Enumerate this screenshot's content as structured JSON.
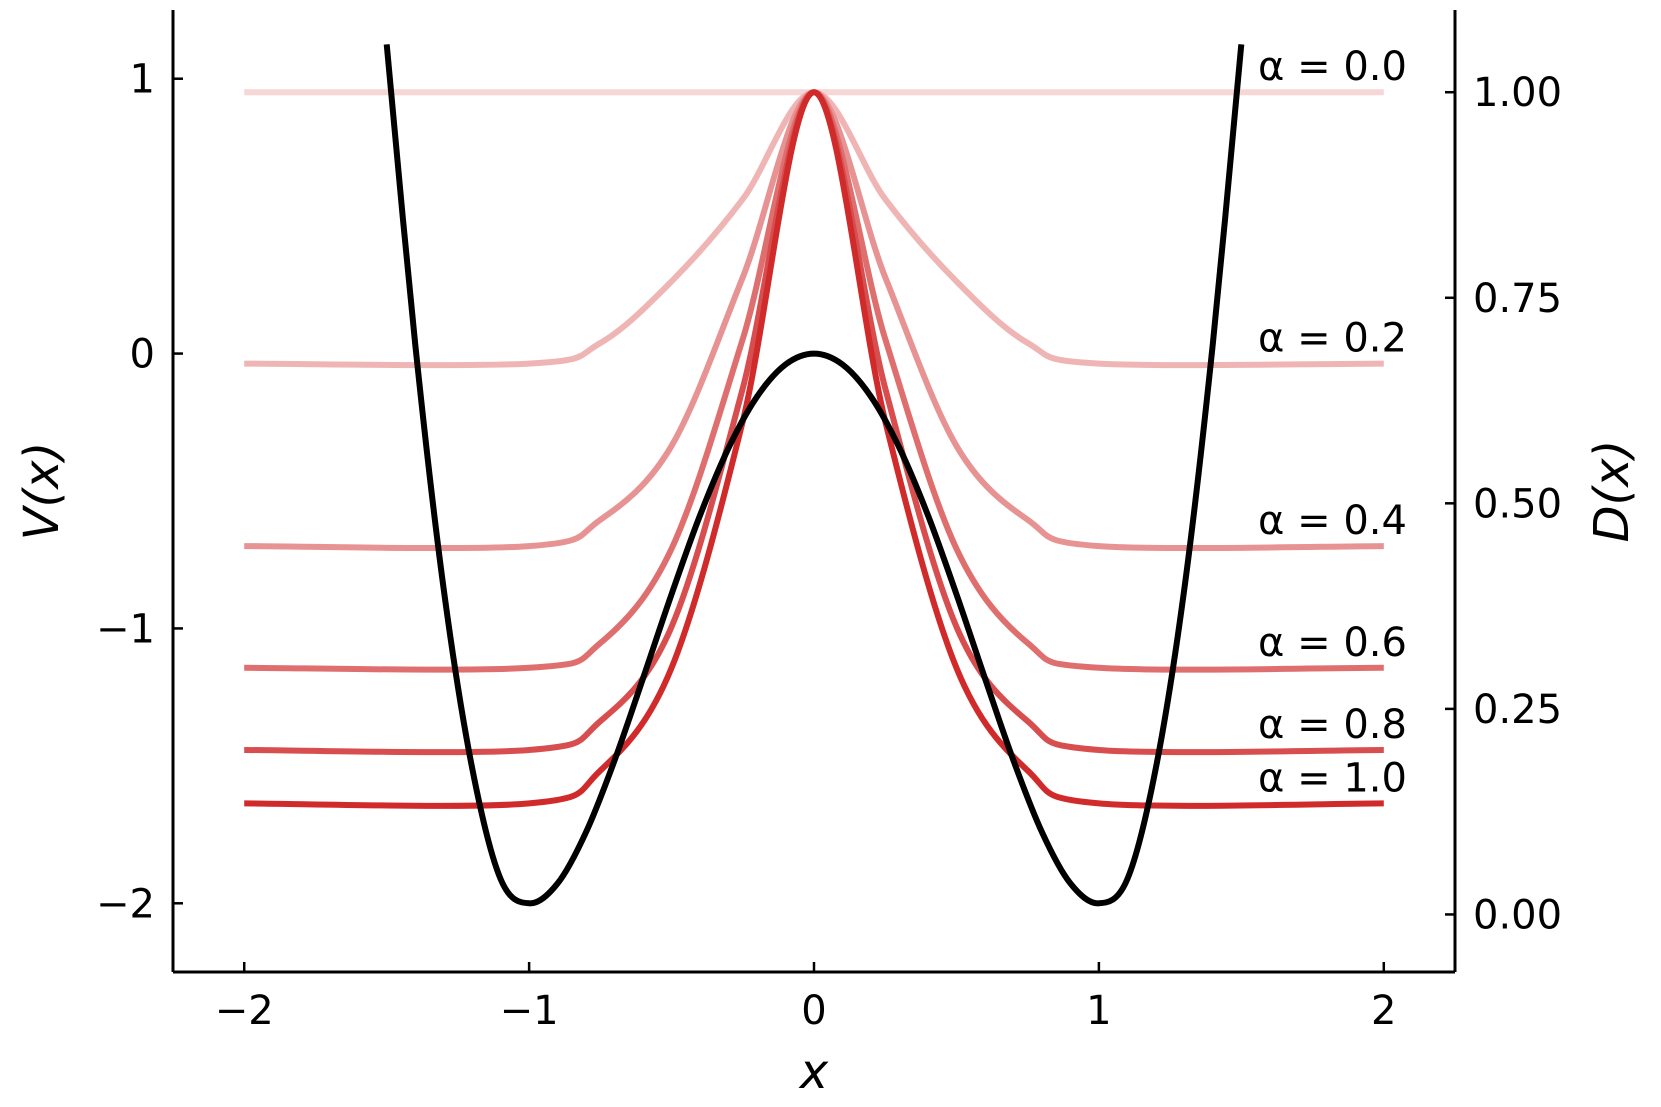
{
  "chart_data": {
    "type": "line",
    "xlabel": "x",
    "ylabel_left": "V(x)",
    "ylabel_right": "D(x)",
    "xlim": [
      -2.25,
      2.25
    ],
    "ylim_left": [
      -2.25,
      1.25
    ],
    "ylim_right": [
      -0.07,
      1.1
    ],
    "x_ticks": [
      -2,
      -1,
      0,
      1,
      2
    ],
    "x_tick_labels": [
      "−2",
      "−1",
      "0",
      "1",
      "2"
    ],
    "y_left_ticks": [
      -2,
      -1,
      0,
      1
    ],
    "y_left_tick_labels": [
      "−2",
      "−1",
      "0",
      "1"
    ],
    "y_right_ticks": [
      0.0,
      0.25,
      0.5,
      0.75,
      1.0
    ],
    "y_right_tick_labels": [
      "0.00",
      "0.25",
      "0.50",
      "0.75",
      "1.00"
    ],
    "grid": false,
    "potential": {
      "formula": "V(x) = 2(x^2 - 1)^2 - 2",
      "color": "#000000",
      "axis": "left",
      "x": [
        -1.5,
        -1.4,
        -1.3,
        -1.2,
        -1.1,
        -1.0,
        -0.9,
        -0.8,
        -0.7,
        -0.6,
        -0.5,
        -0.4,
        -0.3,
        -0.2,
        -0.1,
        0.0,
        0.1,
        0.2,
        0.3,
        0.4,
        0.5,
        0.6,
        0.7,
        0.8,
        0.9,
        1.0,
        1.1,
        1.2,
        1.3,
        1.4,
        1.5
      ],
      "values": [
        1.125,
        0.0352,
        -0.8542,
        -1.5072,
        -1.9118,
        -2.0,
        -1.9278,
        -1.7408,
        -1.4798,
        -1.1808,
        -0.875,
        -0.5888,
        -0.3438,
        -0.1568,
        -0.0398,
        0.0,
        -0.0398,
        -0.1568,
        -0.3438,
        -0.5888,
        -0.875,
        -1.1808,
        -1.4798,
        -1.7408,
        -1.9278,
        -2.0,
        -1.9118,
        -1.5072,
        -0.8542,
        0.0352,
        1.125
      ]
    },
    "series": [
      {
        "name": "α = 0.0",
        "alpha": 0.0,
        "color": "#f7d6d6",
        "axis": "right",
        "x": [
          -2,
          -1,
          -0.75,
          -0.5,
          -0.25,
          0,
          0.25,
          0.5,
          0.75,
          1,
          2
        ],
        "values": [
          1.0,
          1.0,
          1.0,
          1.0,
          1.0,
          1.0,
          1.0,
          1.0,
          1.0,
          1.0,
          1.0
        ]
      },
      {
        "name": "α = 0.2",
        "alpha": 0.2,
        "color": "#efb5b5",
        "axis": "right",
        "x": [
          -2,
          -1,
          -0.75,
          -0.5,
          -0.25,
          0,
          0.25,
          0.5,
          0.75,
          1,
          2
        ],
        "values": [
          0.67,
          0.67,
          0.695,
          0.77,
          0.87,
          1.0,
          0.87,
          0.77,
          0.695,
          0.67,
          0.67
        ]
      },
      {
        "name": "α = 0.4",
        "alpha": 0.4,
        "color": "#e79393",
        "axis": "right",
        "x": [
          -2,
          -1,
          -0.75,
          -0.5,
          -0.25,
          0,
          0.25,
          0.5,
          0.75,
          1,
          2
        ],
        "values": [
          0.448,
          0.448,
          0.48,
          0.57,
          0.775,
          1.0,
          0.775,
          0.57,
          0.48,
          0.448,
          0.448
        ]
      },
      {
        "name": "α = 0.6",
        "alpha": 0.6,
        "color": "#df6f6f",
        "axis": "right",
        "x": [
          -2,
          -1,
          -0.75,
          -0.5,
          -0.25,
          0,
          0.25,
          0.5,
          0.75,
          1,
          2
        ],
        "values": [
          0.3,
          0.3,
          0.33,
          0.445,
          0.7,
          1.0,
          0.7,
          0.445,
          0.33,
          0.3,
          0.3
        ]
      },
      {
        "name": "α = 0.8",
        "alpha": 0.8,
        "color": "#d84e4e",
        "axis": "right",
        "x": [
          -2,
          -1,
          -0.75,
          -0.5,
          -0.25,
          0,
          0.25,
          0.5,
          0.75,
          1,
          2
        ],
        "values": [
          0.2,
          0.2,
          0.235,
          0.35,
          0.64,
          1.0,
          0.64,
          0.35,
          0.235,
          0.2,
          0.2
        ]
      },
      {
        "name": "α = 1.0",
        "alpha": 1.0,
        "color": "#d02a2a",
        "axis": "right",
        "x": [
          -2,
          -1,
          -0.75,
          -0.5,
          -0.25,
          0,
          0.25,
          0.5,
          0.75,
          1,
          2
        ],
        "values": [
          0.135,
          0.135,
          0.175,
          0.3,
          0.6,
          1.0,
          0.6,
          0.3,
          0.175,
          0.135,
          0.135
        ]
      }
    ]
  }
}
